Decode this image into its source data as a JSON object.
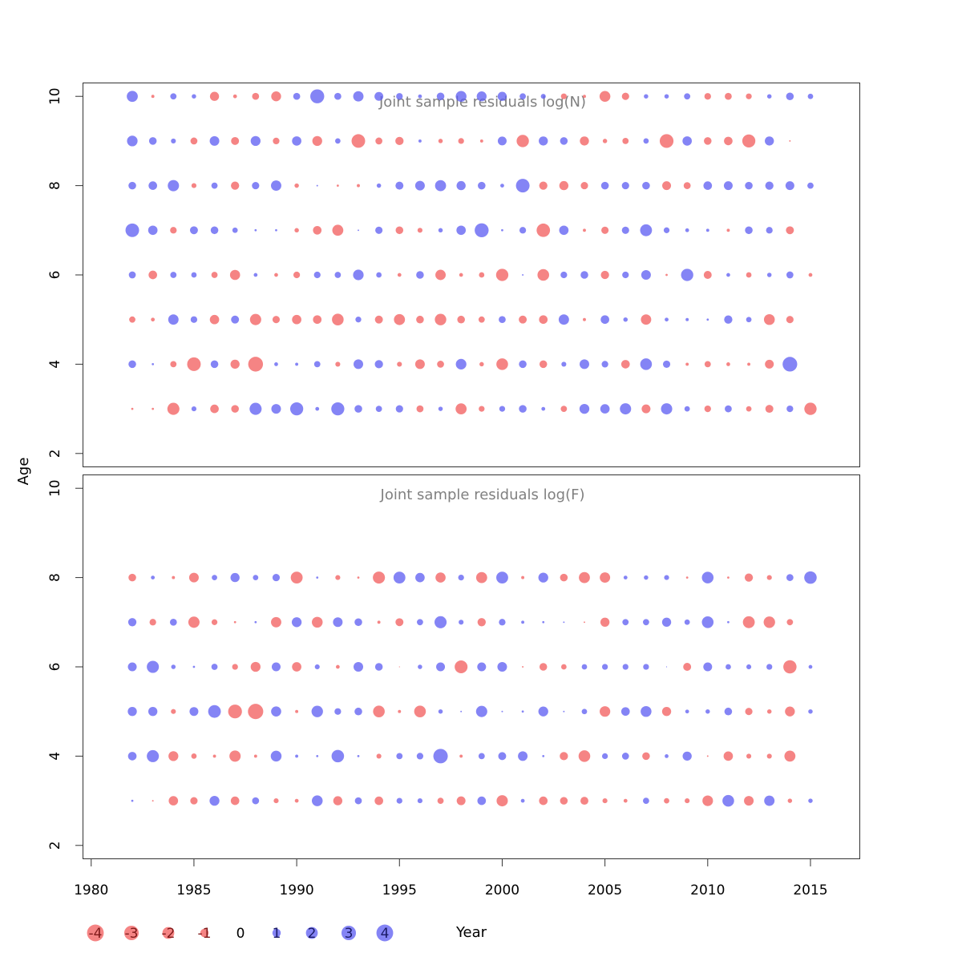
{
  "chart_data": {
    "type": "scatter",
    "subtype": "bubble",
    "xlabel": "Year",
    "ylabel": "Age",
    "x_ticks": [
      1980,
      1985,
      1990,
      1995,
      2000,
      2005,
      2010,
      2015
    ],
    "y_ticks": [
      2,
      4,
      6,
      8,
      10
    ],
    "xlim": [
      1979.6,
      2017.4
    ],
    "ylim": [
      1.7,
      10.3
    ],
    "colors": {
      "positive": "#5b5bf2",
      "negative": "#f25b5b"
    },
    "legend": {
      "placement": "bottom",
      "values": [
        -4,
        -3,
        -2,
        -1,
        0,
        1,
        2,
        3,
        4
      ],
      "labels": [
        "-4",
        "-3",
        "-2",
        "-1",
        "0",
        "1",
        "2",
        "3",
        "4"
      ]
    },
    "panels": [
      {
        "title": "Joint sample residuals log(N)",
        "ages": [
          3,
          4,
          5,
          6,
          7,
          8,
          9,
          10
        ],
        "years_start": 1982,
        "residuals": {
          "10": [
            2.5,
            -0.2,
            0.8,
            0.4,
            -1.7,
            -0.3,
            -1.0,
            -2.0,
            1.0,
            4.0,
            1.0,
            2.2,
            1.6,
            0.9,
            0.3,
            1.2,
            2.4,
            2.0,
            1.7,
            0.8,
            0.5,
            -0.7,
            -0.2,
            -2.4,
            -1.1,
            0.4,
            0.4,
            0.8,
            -0.9,
            -1.0,
            -0.7,
            0.4,
            1.2,
            0.6
          ],
          "9": [
            2.3,
            1.2,
            0.5,
            -1.0,
            1.9,
            -1.3,
            2.0,
            -0.9,
            1.8,
            -2.0,
            0.6,
            -3.8,
            -1.0,
            -1.4,
            0.2,
            -0.4,
            -0.7,
            -0.2,
            1.6,
            -3.1,
            1.7,
            1.2,
            -1.7,
            -0.4,
            -0.8,
            0.6,
            -3.9,
            1.8,
            -1.2,
            -1.5,
            -3.5,
            1.7,
            -0.05
          ],
          "8": [
            1.2,
            1.5,
            2.6,
            -0.5,
            0.8,
            -1.4,
            1.1,
            2.2,
            -0.4,
            0.05,
            -0.1,
            -0.2,
            0.4,
            1.3,
            1.9,
            2.5,
            1.7,
            1.2,
            0.3,
            3.8,
            -1.4,
            -1.7,
            -1.1,
            1.2,
            1.1,
            1.2,
            -1.6,
            -1.0,
            1.5,
            1.6,
            1.2,
            1.4,
            1.6,
            0.8
          ],
          "7": [
            3.8,
            1.8,
            -0.9,
            1.3,
            1.2,
            0.6,
            0.1,
            0.1,
            -0.4,
            -1.5,
            -2.5,
            0.05,
            1.1,
            -1.2,
            -0.5,
            0.4,
            1.8,
            4.0,
            0.1,
            0.9,
            -3.7,
            1.8,
            -0.2,
            -1.1,
            1.1,
            2.9,
            0.7,
            0.3,
            0.2,
            -0.2,
            1.2,
            0.9,
            -1.3
          ],
          "6": [
            1.0,
            -1.5,
            0.8,
            0.6,
            -0.8,
            -2.1,
            0.3,
            -0.3,
            -0.9,
            0.9,
            0.8,
            2.3,
            0.6,
            -0.3,
            1.2,
            -2.2,
            -0.3,
            -0.6,
            -3.1,
            0.05,
            -2.8,
            0.9,
            1.2,
            -1.4,
            0.9,
            1.9,
            -0.1,
            3.1,
            -1.3,
            0.3,
            -0.6,
            0.4,
            1.0,
            -0.3
          ],
          "5": [
            -0.8,
            -0.3,
            2.2,
            0.9,
            -1.8,
            1.3,
            -2.6,
            -1.1,
            -1.8,
            -1.5,
            -2.8,
            0.7,
            -1.3,
            -2.5,
            -1.2,
            -2.7,
            -1.2,
            -0.8,
            1.0,
            -1.3,
            -1.5,
            2.2,
            -0.2,
            1.5,
            0.4,
            -2.2,
            0.3,
            0.2,
            0.1,
            1.4,
            0.6,
            -2.4,
            -1.1
          ],
          "4": [
            1.2,
            0.1,
            -0.8,
            -3.8,
            1.2,
            -1.7,
            -4.5,
            0.3,
            0.2,
            0.8,
            -0.5,
            1.9,
            1.4,
            -0.5,
            -1.9,
            -1.0,
            2.3,
            -0.4,
            -2.8,
            1.2,
            -1.2,
            0.5,
            1.9,
            0.9,
            -1.5,
            2.8,
            1.1,
            -0.2,
            -0.8,
            -0.3,
            -0.2,
            -1.6,
            4.4
          ],
          "3": [
            -0.1,
            -0.1,
            -3.0,
            0.5,
            -1.5,
            -1.2,
            3.0,
            1.9,
            3.5,
            0.3,
            3.5,
            1.2,
            0.8,
            1.1,
            -1.0,
            0.4,
            -2.5,
            -0.7,
            0.7,
            1.2,
            0.3,
            -0.8,
            2.0,
            1.8,
            2.6,
            -1.6,
            2.6,
            0.6,
            -0.9,
            1.0,
            -0.6,
            -1.3,
            0.9,
            -3.1
          ]
        }
      },
      {
        "title": "Joint sample residuals log(F)",
        "ages": [
          3,
          4,
          5,
          6,
          7,
          8
        ],
        "years_start": 1982,
        "residuals": {
          "8": [
            -1.2,
            0.3,
            -0.2,
            -1.9,
            0.6,
            1.7,
            0.6,
            1.1,
            -2.9,
            0.1,
            -0.5,
            -0.1,
            -3.0,
            2.9,
            1.8,
            -2.1,
            0.7,
            -2.5,
            2.9,
            -0.2,
            2.0,
            -1.2,
            -2.5,
            -2.2,
            0.3,
            0.4,
            0.5,
            -0.1,
            2.8,
            -0.1,
            -1.4,
            -0.5,
            1.0,
            3.2
          ],
          "7": [
            1.4,
            -0.9,
            1.0,
            -2.6,
            -0.7,
            -0.1,
            0.1,
            -2.2,
            2.0,
            -2.4,
            1.9,
            1.2,
            -0.2,
            -1.3,
            0.8,
            3.0,
            0.5,
            -1.4,
            0.9,
            0.2,
            0.1,
            0.05,
            -0.05,
            -1.7,
            0.8,
            0.8,
            1.7,
            0.6,
            2.8,
            0.1,
            -2.9,
            -2.7,
            -0.8
          ],
          "6": [
            1.6,
            3.0,
            0.4,
            0.1,
            0.8,
            -0.7,
            -2.0,
            1.6,
            -1.8,
            0.5,
            -0.3,
            1.9,
            1.2,
            -0.01,
            0.4,
            1.6,
            -3.4,
            1.6,
            1.9,
            -0.05,
            -1.2,
            -0.6,
            0.6,
            0.7,
            0.7,
            0.7,
            0.01,
            -1.3,
            1.6,
            0.6,
            0.5,
            0.7,
            -3.6,
            0.3
          ],
          "5": [
            1.7,
            1.7,
            -0.5,
            1.6,
            3.3,
            -3.9,
            -4.8,
            2.1,
            -0.2,
            2.7,
            0.9,
            1.2,
            -2.8,
            -0.2,
            -2.8,
            0.4,
            0.05,
            2.6,
            0.05,
            0.1,
            2.0,
            0.05,
            0.6,
            -2.3,
            1.5,
            2.4,
            -1.7,
            0.3,
            0.4,
            1.2,
            -1.1,
            -0.4,
            -2.0,
            0.4
          ],
          "4": [
            1.5,
            3.0,
            -2.0,
            -0.6,
            -0.2,
            -2.6,
            -0.2,
            2.4,
            0.2,
            0.1,
            3.2,
            0.1,
            -0.5,
            0.8,
            0.9,
            4.3,
            -0.2,
            0.8,
            1.3,
            1.9,
            0.1,
            -1.4,
            -2.8,
            0.7,
            1.0,
            -1.2,
            0.3,
            1.7,
            -0.05,
            -1.8,
            -0.5,
            -0.5,
            -2.5
          ],
          "3": [
            0.1,
            -0.05,
            -1.8,
            -1.1,
            2.0,
            -1.5,
            1.0,
            -0.5,
            -0.3,
            2.4,
            -1.7,
            1.0,
            -1.5,
            0.7,
            0.5,
            -0.8,
            -1.6,
            1.5,
            -2.6,
            0.3,
            -1.5,
            -1.2,
            -1.3,
            -0.5,
            -0.3,
            0.8,
            -0.6,
            -0.5,
            -2.3,
            2.8,
            -1.9,
            2.2,
            -0.4,
            0.4
          ]
        }
      }
    ]
  }
}
